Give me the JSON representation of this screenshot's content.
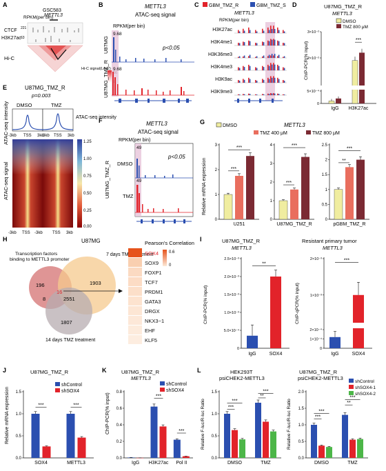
{
  "colors": {
    "red": "#e2232a",
    "blue": "#2b4fb0",
    "green": "#4cb648",
    "yellow": "#f0eda0",
    "salmon": "#e96e5e",
    "maroon": "#7b2a33",
    "pink": "#e7c4d9",
    "grey": "#9aa0a6"
  },
  "panels": {
    "A": {
      "letter": "A",
      "cell_line": "GSC583",
      "gene": "METTL3",
      "track_label": "RPKM(per bin)",
      "ctcf": "CTCF",
      "ctcf_max": "221",
      "h3k27ac": "H3K27ac",
      "h3k27ac_max": "63",
      "hic": "Hi-C",
      "legend_title": "Hi-C signal(Log2)",
      "legend_max": "36",
      "legend_min": "2"
    },
    "B": {
      "letter": "B",
      "gene": "METTL3",
      "subtitle": "ATAC-seq signal",
      "track_label": "RPKM(per bin)",
      "row1": "U87MG",
      "row1_max": "9.68",
      "row2": "U87MG_TMZ_R",
      "row2_max": "9.68",
      "pvalue": "p<0.05"
    },
    "C": {
      "letter": "C",
      "legend1": "GBM_TMZ_R",
      "legend2": "GBM_TMZ_S",
      "gene": "METTL3",
      "track_label": "RPKM(per bin)",
      "marks": [
        "H3K27ac",
        "H3K4me1",
        "H3K36me3",
        "H3K4me3",
        "H3K9ac",
        "H3K9me3"
      ]
    },
    "D": {
      "letter": "D",
      "title": "U87MG_TMZ_R",
      "gene": "METTL3",
      "ylabel": "ChIP-PCR(% input)",
      "yticks": [
        "3×10⁻²",
        "2×10⁻²",
        "5×10⁻⁴",
        "0"
      ],
      "legend1": "DMSO",
      "legend2": "TMZ 800 μM",
      "categories": [
        "IgG",
        "H3K27ac"
      ],
      "sig": "***"
    },
    "E": {
      "letter": "E",
      "title": "U87MG_TMZ_R",
      "pvalue": "p=0.003",
      "col1": "DMSO",
      "col2": "TMZ",
      "profile_ylabel": "ATAC-seq intensity",
      "heat_ylabel": "ATAC-seq signal",
      "xticks": [
        "-3kb",
        "TSS",
        "3kb"
      ],
      "colorbar_title": "ATAC-seq intensity",
      "colorbar_ticks": [
        "1.25",
        "1.00",
        "0.75",
        "0.50",
        "0.25",
        "0.00"
      ]
    },
    "F": {
      "letter": "F",
      "gene": "METTL3",
      "subtitle": "ATAC-seq signal",
      "track_label": "RPKM(per bin)",
      "row_group": "U87MG_TMZ_R",
      "row1": "DMSO",
      "row1_max": "49",
      "row2": "TMZ",
      "row2_max": "49",
      "pvalue": "p<0.05"
    },
    "G": {
      "letter": "G",
      "gene": "METTL3",
      "legend": [
        "DMSO",
        "TMZ 400 μM",
        "TMZ 800 μM"
      ],
      "ylabel": "Relative mRNA expression",
      "groups": [
        "U251",
        "U87MG_TMZ_R",
        "pGBM_TMZ_R"
      ]
    },
    "H": {
      "letter": "H",
      "title": "U87MG",
      "label_tf": "Transcription factors binding to METTL3 promoter",
      "label_7d": "7 days TMZ treatment",
      "label_14d": "14 days TMZ treatment",
      "venn_numbers": [
        "196",
        "1903",
        "16",
        "8",
        "2551",
        "1807"
      ],
      "heat_title": "Pearson's Correlation",
      "genes": [
        "SOX4",
        "SOX9",
        "FOXP1",
        "TCF7",
        "PRDM1",
        "GATA3",
        "DRGX",
        "NKX3−1",
        "EHF",
        "KLF5"
      ],
      "scale_max": "0.6",
      "scale_min": "0"
    },
    "I": {
      "letter": "I",
      "left_title": "U87MG_TMZ_R",
      "left_gene": "METTL3",
      "left_ylabel": "ChIP-PCR(% input)",
      "left_yticks": [
        "2.5×10⁻³",
        "2.0×10⁻³",
        "1.5×10⁻³",
        "1.0×10⁻³",
        "5.0×10⁻⁴",
        "0"
      ],
      "right_title": "Resistant primary tumor",
      "right_gene": "METTL3",
      "right_ylabel": "ChIP-qPCR(% input)",
      "right_yticks": [
        "2×10⁻³",
        "1×10⁻³",
        "2×10⁻⁴",
        "1×10⁻⁴",
        "0"
      ],
      "categories": [
        "IgG",
        "SOX4"
      ],
      "sig1": "**",
      "sig2": "***"
    },
    "J": {
      "letter": "J",
      "title": "U87MG_TMZ_R",
      "ylabel": "Relative mRNA expression",
      "legend": [
        "shControl",
        "shSOX4"
      ],
      "groups": [
        "SOX4",
        "METTL3"
      ]
    },
    "K": {
      "letter": "K",
      "title": "U87MG_TMZ_R",
      "gene": "METTL3",
      "ylabel": "ChIP-PCR(% input)",
      "legend": [
        "shControl",
        "shSOX4"
      ],
      "groups": [
        "IgG",
        "H3K27ac",
        "Pol II"
      ]
    },
    "L": {
      "letter": "L",
      "left_title": "HEK293T",
      "left_sub": "psiCHEK2-METTL3",
      "right_title": "U87MG_TMZ_R",
      "right_sub": "psiCHEK2-METTL3",
      "ylabel": "Relative F-luc/R-luc Ratio",
      "legend": [
        "shControl",
        "shSOX4-1",
        "shSOX4-2"
      ],
      "groups": [
        "DMSO",
        "TMZ"
      ]
    }
  },
  "chart_data": [
    {
      "panel": "D",
      "type": "bar",
      "categories": [
        "IgG",
        "H3K27ac"
      ],
      "series": [
        {
          "name": "DMSO",
          "values": [
            0.0001,
            0.019
          ]
        },
        {
          "name": "TMZ 800 μM",
          "values": [
            0.0002,
            0.022
          ]
        }
      ]
    },
    {
      "panel": "G",
      "type": "bar",
      "categories": [
        "U251",
        "U87MG_TMZ_R",
        "pGBM_TMZ_R"
      ],
      "series": [
        {
          "name": "DMSO",
          "values": [
            1.0,
            1.0,
            1.0
          ]
        },
        {
          "name": "TMZ 400 μM",
          "values": [
            1.75,
            1.6,
            1.75
          ]
        },
        {
          "name": "TMZ 800 μM",
          "values": [
            2.55,
            3.35,
            2.0
          ]
        }
      ],
      "yticks": [
        [
          0,
          1,
          2,
          3
        ],
        [
          0,
          1,
          2,
          3,
          4
        ],
        [
          0,
          0.5,
          1.0,
          1.5,
          2.0,
          2.5
        ]
      ]
    },
    {
      "panel": "I-left",
      "type": "bar",
      "categories": [
        "IgG",
        "SOX4"
      ],
      "values": [
        0.00035,
        0.002
      ]
    },
    {
      "panel": "I-right",
      "type": "bar",
      "categories": [
        "IgG",
        "SOX4"
      ],
      "values": [
        0.00012,
        0.001
      ]
    },
    {
      "panel": "J",
      "type": "bar",
      "categories": [
        "SOX4",
        "METTL3"
      ],
      "series": [
        {
          "name": "shControl",
          "values": [
            1.0,
            1.0
          ]
        },
        {
          "name": "shSOX4",
          "values": [
            0.26,
            0.46
          ]
        }
      ],
      "yticks": [
        0,
        0.5,
        1.0,
        1.5
      ]
    },
    {
      "panel": "K",
      "type": "bar",
      "categories": [
        "IgG",
        "H3K27ac",
        "Pol II"
      ],
      "series": [
        {
          "name": "shControl",
          "values": [
            0.005,
            0.62,
            0.22
          ]
        },
        {
          "name": "shSOX4",
          "values": [
            0.001,
            0.38,
            0.02
          ]
        }
      ],
      "yticks": [
        0,
        0.2,
        0.4,
        0.6,
        0.8
      ]
    },
    {
      "panel": "L-left",
      "type": "bar",
      "categories": [
        "DMSO",
        "TMZ"
      ],
      "series": [
        {
          "name": "shControl",
          "values": [
            1.0,
            1.25
          ]
        },
        {
          "name": "shSOX4-1",
          "values": [
            0.63,
            0.82
          ]
        },
        {
          "name": "shSOX4-2",
          "values": [
            0.42,
            0.6
          ]
        }
      ],
      "yticks": [
        0,
        0.5,
        1.0,
        1.5
      ]
    },
    {
      "panel": "L-right",
      "type": "bar",
      "categories": [
        "DMSO",
        "TMZ"
      ],
      "series": [
        {
          "name": "shControl",
          "values": [
            1.0,
            1.3
          ]
        },
        {
          "name": "shSOX4-1",
          "values": [
            0.37,
            0.55
          ]
        },
        {
          "name": "shSOX4-2",
          "values": [
            0.33,
            0.57
          ]
        }
      ],
      "yticks": [
        0,
        0.5,
        1.0,
        1.5,
        2.0
      ]
    }
  ]
}
